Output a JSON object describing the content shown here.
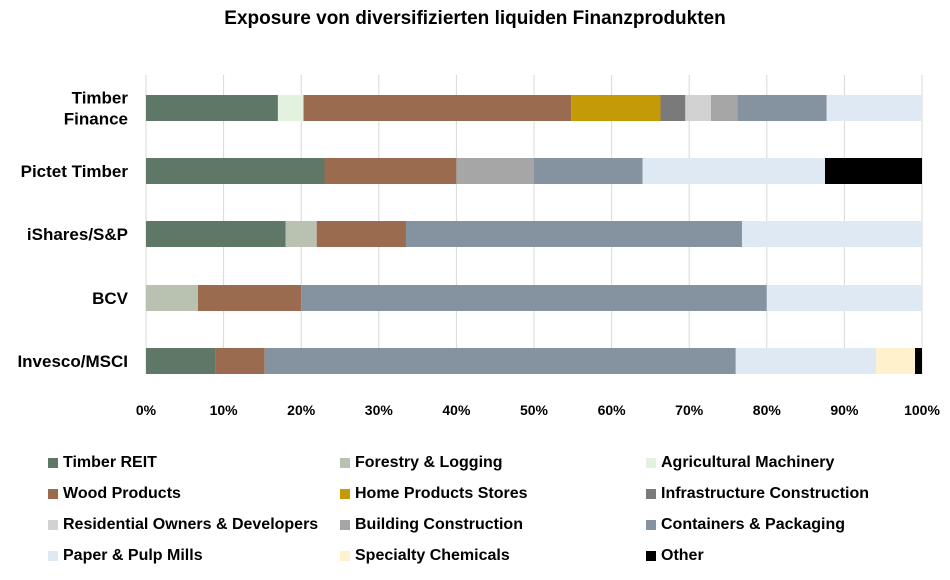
{
  "chart_data": {
    "type": "bar",
    "orientation": "horizontal",
    "stacked": "percent",
    "title": "Exposure von diversifizierten liquiden Finanzprodukten",
    "categories": [
      [
        "Timber",
        "Finance"
      ],
      [
        "Pictet Timber"
      ],
      [
        "iShares/S&P"
      ],
      [
        "BCV"
      ],
      [
        "Invesco/MSCI"
      ]
    ],
    "x_ticks": [
      "0%",
      "10%",
      "20%",
      "30%",
      "40%",
      "50%",
      "60%",
      "70%",
      "80%",
      "90%",
      "100%"
    ],
    "xlim": [
      0,
      100
    ],
    "grid": "vertical",
    "legend_position": "bottom",
    "series": [
      {
        "name": "Timber REIT",
        "color": "#5e7767",
        "values": [
          17,
          23,
          18,
          0,
          9
        ]
      },
      {
        "name": "Forestry & Logging",
        "color": "#b9c2b0",
        "values": [
          0,
          0,
          4,
          6.7,
          0
        ]
      },
      {
        "name": "Agricultural Machinery",
        "color": "#e3f1df",
        "values": [
          3.3,
          0,
          0,
          0,
          0
        ]
      },
      {
        "name": "Wood Products",
        "color": "#9b6b4f",
        "values": [
          34.5,
          17,
          11.5,
          13.3,
          6.3
        ]
      },
      {
        "name": "Home Products Stores",
        "color": "#c49a06",
        "values": [
          11.5,
          0,
          0,
          0,
          0
        ]
      },
      {
        "name": "Infrastructure Construction",
        "color": "#7a7a7a",
        "values": [
          3.2,
          0,
          0,
          0,
          0
        ]
      },
      {
        "name": "Residential Owners & Developers",
        "color": "#d2d2d2",
        "values": [
          3.3,
          0,
          0,
          0,
          0
        ]
      },
      {
        "name": "Building Construction",
        "color": "#a6a6a6",
        "values": [
          3.4,
          10,
          0,
          0,
          0
        ]
      },
      {
        "name": "Containers & Packaging",
        "color": "#85929f",
        "values": [
          11.5,
          14,
          43.3,
          60,
          60.7
        ]
      },
      {
        "name": "Paper & Pulp Mills",
        "color": "#dfe9f4",
        "values": [
          12.3,
          23.5,
          23.2,
          20,
          18.1
        ]
      },
      {
        "name": "Specialty Chemicals",
        "color": "#fff1cc",
        "values": [
          0,
          0,
          0,
          0,
          5
        ]
      },
      {
        "name": "Other",
        "color": "#000000",
        "values": [
          0,
          12.5,
          0,
          0,
          0.9
        ]
      }
    ]
  }
}
